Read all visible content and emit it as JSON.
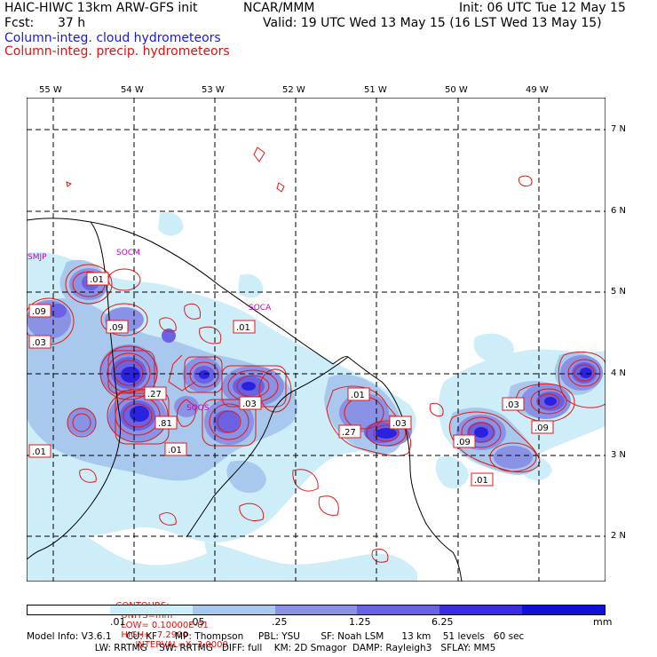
{
  "header": {
    "model_title": "HAIC-HIWC 13km ARW-GFS init",
    "org": "NCAR/MMM",
    "init": "Init: 06 UTC Tue 12 May 15",
    "fcst_label": "Fcst:",
    "fcst_value": "37 h",
    "valid": "Valid: 19 UTC Wed 13 May 15 (16 LST Wed 13 May 15)",
    "field_cloud": "Column-integ. cloud hydrometeors",
    "field_precip": "Column-integ. precip. hydrometeors"
  },
  "colors": {
    "cloud_text": "#1a1adc",
    "precip_text": "#e01010",
    "contour": "#e01818",
    "station": "#c000c0",
    "fill_levels": [
      "#ffffff",
      "#cdeef8",
      "#a9c8ee",
      "#8a92e6",
      "#6a62e2",
      "#3a2ee0",
      "#1010d8"
    ]
  },
  "lon_ticks": [
    "55 W",
    "54 W",
    "53 W",
    "52 W",
    "51 W",
    "50 W",
    "49 W"
  ],
  "lat_ticks": [
    "7 N",
    "6 N",
    "5 N",
    "4 N",
    "3 N",
    "2 N"
  ],
  "stations": [
    {
      "id": "SMJP",
      "label": "SMJP"
    },
    {
      "id": "SOCM",
      "label": "SOCM"
    },
    {
      "id": "SOCA",
      "label": "SOCA"
    },
    {
      "id": "SOOS",
      "label": "SOOS"
    }
  ],
  "contour_labels": [
    ".01",
    ".09",
    ".03",
    ".09",
    ".01",
    ".27",
    ".81",
    ".01",
    ".01",
    ".03",
    ".01",
    ".27",
    ".03",
    ".09",
    ".01",
    ".03",
    ".09"
  ],
  "contours_line": {
    "prefix": "CONTOURS:",
    "units": "UNITS=mm",
    "low": "LOW= 0.10000E-01",
    "high": "HIGH=  7.2900",
    "interval": "INTERVAL=X  3.0000"
  },
  "colorbar": {
    "labels": [
      ".01",
      ".05",
      ".25",
      "1.25",
      "6.25"
    ],
    "units": "mm"
  },
  "footer": {
    "line1": "Model Info: V3.6.1     CU: KF      MP: Thompson     PBL: YSU       SF: Noah LSM      13 km    51 levels   60 sec",
    "line2": "                       LW: RRTMG    SW: RRTMG   DIFF: full    KM: 2D Smagor  DAMP: Rayleigh3   SFLAY: MM5"
  }
}
